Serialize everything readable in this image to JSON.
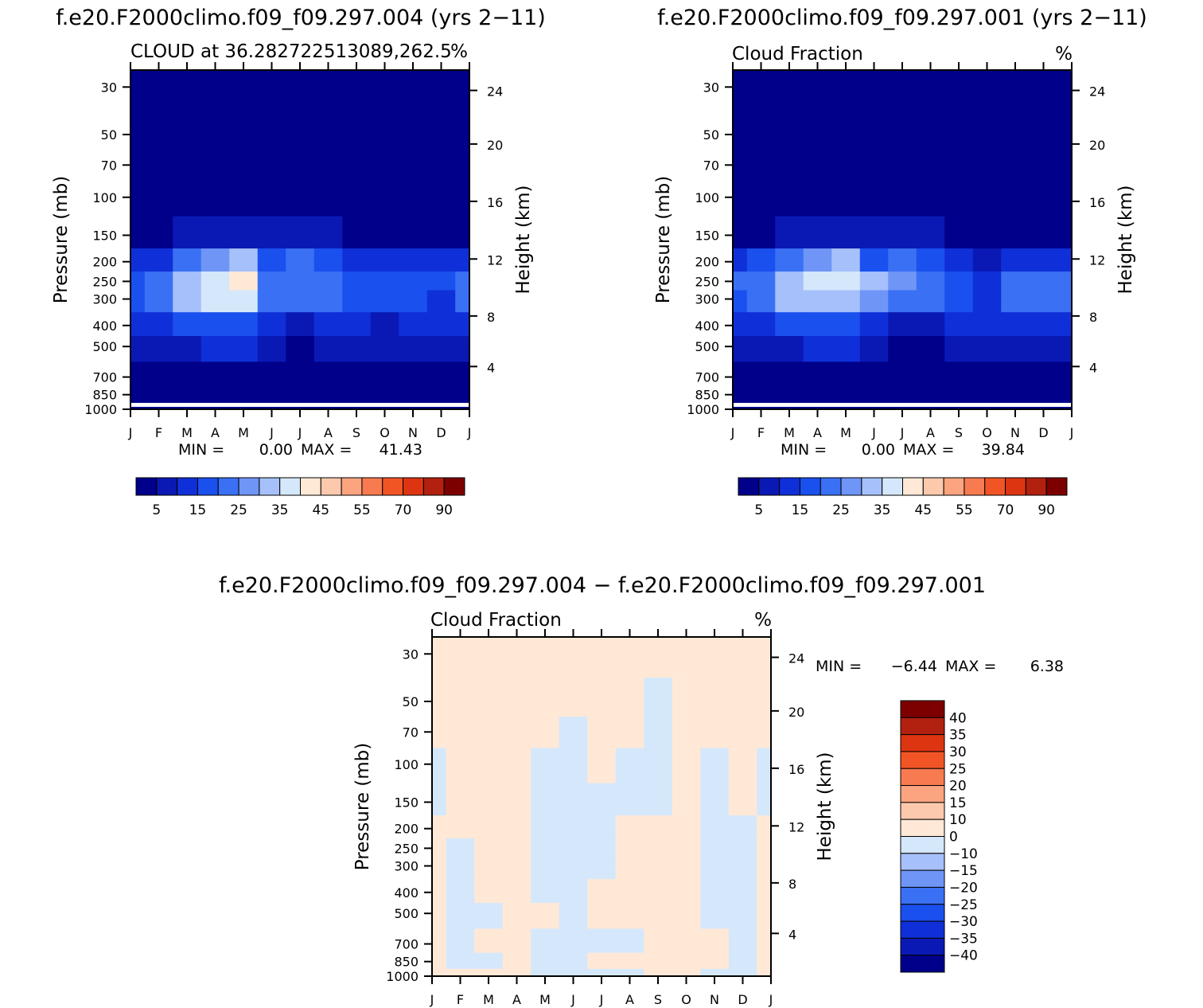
{
  "chart_data": [
    {
      "type": "heatmap",
      "title": "f.e20.F2000climo.f09_f09.297.004 (yrs 2−11)",
      "subtitle_left": "CLOUD at 36.282722513089,262.5",
      "subtitle_right": "%",
      "xlabel": "",
      "ylabel": "Pressure (mb)",
      "ylabel_right": "Height (km)",
      "x_ticks": [
        "J",
        "F",
        "M",
        "A",
        "M",
        "J",
        "J",
        "A",
        "S",
        "O",
        "N",
        "D",
        "J"
      ],
      "y_ticks": [
        "30",
        "50",
        "70",
        "100",
        "150",
        "200",
        "250",
        "300",
        "400",
        "500",
        "700",
        "850",
        "1000"
      ],
      "y_ticks_right": [
        "24",
        "20",
        "16",
        "12",
        "8",
        "4"
      ],
      "min_label": "MIN =",
      "min_value": "0.00",
      "max_label": "MAX =",
      "max_value": "41.43",
      "colorbar_labels": [
        "5",
        "15",
        "25",
        "35",
        "45",
        "55",
        "70",
        "90"
      ],
      "colorbar_colors": [
        "#00008a",
        "#0a19b4",
        "#0f30d8",
        "#1a50ee",
        "#3a70f4",
        "#6f95f7",
        "#a5c0fa",
        "#d5e8fb",
        "#ffe8d6",
        "#fcc9ad",
        "#fba47f",
        "#f87a50",
        "#f25525",
        "#dd3512",
        "#b22010",
        "#7d0000"
      ],
      "values": [
        [
          0,
          0,
          0,
          0,
          0,
          0,
          0,
          0,
          0,
          0,
          0,
          0,
          0
        ],
        [
          0,
          0,
          0,
          0,
          0,
          0,
          0,
          0,
          0,
          0,
          0,
          0,
          0
        ],
        [
          0,
          0,
          0,
          0,
          0,
          0,
          0,
          0,
          0,
          0,
          0,
          0,
          0
        ],
        [
          0,
          0,
          0,
          0,
          0,
          0,
          0,
          0,
          0,
          0,
          0,
          0,
          0
        ],
        [
          4,
          4,
          5,
          7,
          8,
          6,
          8,
          6,
          4,
          3,
          4,
          4,
          4
        ],
        [
          10,
          14,
          22,
          28,
          32,
          15,
          20,
          18,
          14,
          10,
          12,
          12,
          12
        ],
        [
          18,
          22,
          32,
          38,
          41,
          22,
          24,
          22,
          18,
          16,
          18,
          18,
          20
        ],
        [
          15,
          20,
          32,
          36,
          36,
          22,
          22,
          20,
          18,
          16,
          18,
          14,
          24
        ],
        [
          12,
          12,
          15,
          18,
          16,
          12,
          8,
          10,
          12,
          8,
          10,
          12,
          12
        ],
        [
          6,
          6,
          8,
          10,
          10,
          6,
          4,
          6,
          6,
          7,
          7,
          6,
          6
        ],
        [
          3,
          3,
          4,
          4,
          4,
          2,
          1,
          1,
          2,
          2,
          2,
          2,
          3
        ],
        [
          1,
          2,
          2,
          2,
          2,
          1,
          1,
          1,
          1,
          1,
          1,
          1,
          1
        ],
        [
          0,
          0,
          0,
          0,
          0,
          0,
          0,
          0,
          0,
          0,
          0,
          0,
          0
        ]
      ]
    },
    {
      "type": "heatmap",
      "title": "f.e20.F2000climo.f09_f09.297.001 (yrs 2−11)",
      "subtitle_left": "Cloud Fraction",
      "subtitle_right": "%",
      "xlabel": "",
      "ylabel": "Pressure (mb)",
      "ylabel_right": "Height (km)",
      "x_ticks": [
        "J",
        "F",
        "M",
        "A",
        "M",
        "J",
        "J",
        "A",
        "S",
        "O",
        "N",
        "D",
        "J"
      ],
      "y_ticks": [
        "30",
        "50",
        "70",
        "100",
        "150",
        "200",
        "250",
        "300",
        "400",
        "500",
        "700",
        "850",
        "1000"
      ],
      "y_ticks_right": [
        "24",
        "20",
        "16",
        "12",
        "8",
        "4"
      ],
      "min_label": "MIN =",
      "min_value": "0.00",
      "max_label": "MAX =",
      "max_value": "39.84",
      "colorbar_labels": [
        "5",
        "15",
        "25",
        "35",
        "45",
        "55",
        "70",
        "90"
      ],
      "colorbar_colors": [
        "#00008a",
        "#0a19b4",
        "#0f30d8",
        "#1a50ee",
        "#3a70f4",
        "#6f95f7",
        "#a5c0fa",
        "#d5e8fb",
        "#ffe8d6",
        "#fcc9ad",
        "#fba47f",
        "#f87a50",
        "#f25525",
        "#dd3512",
        "#b22010",
        "#7d0000"
      ],
      "values": [
        [
          0,
          0,
          0,
          0,
          0,
          0,
          0,
          0,
          0,
          0,
          0,
          0,
          0
        ],
        [
          0,
          0,
          0,
          0,
          0,
          0,
          0,
          0,
          0,
          0,
          0,
          0,
          0
        ],
        [
          0,
          0,
          0,
          0,
          0,
          0,
          0,
          0,
          0,
          0,
          0,
          0,
          0
        ],
        [
          0,
          0,
          0,
          0,
          0,
          0,
          0,
          0,
          0,
          0,
          0,
          0,
          0
        ],
        [
          4,
          4,
          5,
          7,
          8,
          6,
          9,
          6,
          4,
          3,
          4,
          4,
          4
        ],
        [
          12,
          16,
          22,
          26,
          30,
          18,
          22,
          18,
          14,
          6,
          12,
          14,
          14
        ],
        [
          20,
          24,
          32,
          36,
          39,
          30,
          26,
          22,
          18,
          10,
          20,
          22,
          22
        ],
        [
          16,
          22,
          30,
          34,
          34,
          26,
          22,
          20,
          16,
          12,
          20,
          20,
          22
        ],
        [
          12,
          12,
          16,
          18,
          16,
          12,
          8,
          8,
          10,
          12,
          10,
          12,
          12
        ],
        [
          6,
          6,
          8,
          10,
          10,
          6,
          4,
          4,
          6,
          8,
          6,
          6,
          6
        ],
        [
          3,
          3,
          3,
          4,
          4,
          2,
          2,
          2,
          2,
          2,
          2,
          2,
          3
        ],
        [
          1,
          2,
          2,
          2,
          2,
          1,
          1,
          1,
          1,
          1,
          1,
          1,
          1
        ],
        [
          0,
          0,
          0,
          0,
          0,
          0,
          0,
          0,
          0,
          0,
          0,
          0,
          0
        ]
      ]
    },
    {
      "type": "heatmap",
      "title": "f.e20.F2000climo.f09_f09.297.004 − f.e20.F2000climo.f09_f09.297.001",
      "subtitle_left": "Cloud Fraction",
      "subtitle_right": "%",
      "xlabel": "",
      "ylabel": "Pressure (mb)",
      "ylabel_right": "Height (km)",
      "x_ticks": [
        "J",
        "F",
        "M",
        "A",
        "M",
        "J",
        "J",
        "A",
        "S",
        "O",
        "N",
        "D",
        "J"
      ],
      "y_ticks": [
        "30",
        "50",
        "70",
        "100",
        "150",
        "200",
        "250",
        "300",
        "400",
        "500",
        "700",
        "850",
        "1000"
      ],
      "y_ticks_right": [
        "24",
        "20",
        "16",
        "12",
        "8",
        "4"
      ],
      "min_label": "MIN =",
      "min_value": "−6.44",
      "max_label": "MAX =",
      "max_value": "6.38",
      "colorbar_labels": [
        "40",
        "35",
        "30",
        "25",
        "20",
        "15",
        "10",
        "0",
        "−10",
        "−15",
        "−20",
        "−25",
        "−30",
        "−35",
        "−40"
      ],
      "colorbar_colors": [
        "#7d0000",
        "#b22010",
        "#dd3512",
        "#f25525",
        "#f87a50",
        "#fba47f",
        "#fcc9ad",
        "#ffe8d6",
        "#d5e8fb",
        "#a5c0fa",
        "#6f95f7",
        "#3a70f4",
        "#1a50ee",
        "#0f30d8",
        "#0a19b4",
        "#00008a"
      ],
      "values": [
        [
          1,
          1,
          1,
          1,
          1,
          1,
          1,
          1,
          1,
          1,
          1,
          1,
          1
        ],
        [
          1,
          1,
          1,
          1,
          1,
          1,
          1,
          1,
          -1,
          1,
          1,
          1,
          1
        ],
        [
          1,
          1,
          1,
          1,
          1,
          -1,
          1,
          1,
          -1,
          1,
          1,
          1,
          1
        ],
        [
          -1,
          1,
          1,
          1,
          -1,
          -1,
          1,
          -1,
          -1,
          1,
          -1,
          1,
          -1
        ],
        [
          -1,
          1,
          1,
          1,
          -1,
          -1,
          -1,
          -1,
          -1,
          1,
          -1,
          1,
          -1
        ],
        [
          1,
          1,
          1,
          1,
          -1,
          -1,
          -1,
          1,
          1,
          1,
          -1,
          -1,
          1
        ],
        [
          1,
          -1,
          1,
          1,
          -1,
          -1,
          -1,
          1,
          1,
          1,
          -1,
          -1,
          1
        ],
        [
          1,
          -1,
          1,
          1,
          -1,
          -1,
          -1,
          1,
          1,
          1,
          -1,
          -1,
          1
        ],
        [
          1,
          -1,
          1,
          1,
          -1,
          -1,
          1,
          1,
          1,
          1,
          -1,
          -1,
          1
        ],
        [
          1,
          -1,
          -1,
          1,
          1,
          -1,
          1,
          1,
          1,
          1,
          -1,
          -1,
          1
        ],
        [
          1,
          -1,
          1,
          1,
          -1,
          -1,
          -1,
          -1,
          1,
          1,
          1,
          -1,
          1
        ],
        [
          1,
          -1,
          -1,
          1,
          -1,
          -1,
          1,
          1,
          1,
          1,
          1,
          -1,
          1
        ],
        [
          1,
          1,
          1,
          1,
          -1,
          -1,
          -1,
          -1,
          1,
          1,
          -1,
          -1,
          1
        ]
      ]
    }
  ]
}
